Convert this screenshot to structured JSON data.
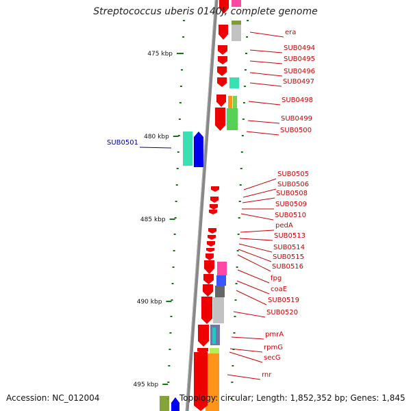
{
  "header": {
    "title": "Streptococcus uberis 0140J, complete genome"
  },
  "footer": {
    "accession": "Accession: NC_012004",
    "summary": "Topology: circular; Length: 1,852,352 bp; Genes: 1,845"
  },
  "scale": {
    "ticks": [
      {
        "label": "475 kbp",
        "kbp": 475
      },
      {
        "label": "480 kbp",
        "kbp": 480
      },
      {
        "label": "485 kbp",
        "kbp": 485
      },
      {
        "label": "490 kbp",
        "kbp": 490
      },
      {
        "label": "495 kbp",
        "kbp": 495
      }
    ]
  },
  "colors": {
    "forward_gene": "#ee0000",
    "reverse_gene": "#0000ee",
    "label_forward": "#cc0000",
    "label_reverse": "#000099",
    "backbone": "#888888",
    "ticks": "#117711"
  },
  "genes": [
    {
      "name": "era",
      "strand": "forward"
    },
    {
      "name": "SUB0494",
      "strand": "forward"
    },
    {
      "name": "SUB0495",
      "strand": "forward"
    },
    {
      "name": "SUB0496",
      "strand": "forward"
    },
    {
      "name": "SUB0497",
      "strand": "forward"
    },
    {
      "name": "SUB0498",
      "strand": "forward"
    },
    {
      "name": "SUB0499",
      "strand": "forward"
    },
    {
      "name": "SUB0500",
      "strand": "forward"
    },
    {
      "name": "SUB0501",
      "strand": "reverse"
    },
    {
      "name": "SUB0505",
      "strand": "forward"
    },
    {
      "name": "SUB0506",
      "strand": "forward"
    },
    {
      "name": "SUB0508",
      "strand": "forward"
    },
    {
      "name": "SUB0509",
      "strand": "forward"
    },
    {
      "name": "SUB0510",
      "strand": "forward"
    },
    {
      "name": "pedA",
      "strand": "forward"
    },
    {
      "name": "SUB0513",
      "strand": "forward"
    },
    {
      "name": "SUB0514",
      "strand": "forward"
    },
    {
      "name": "SUB0515",
      "strand": "forward"
    },
    {
      "name": "SUB0516",
      "strand": "forward"
    },
    {
      "name": "fpg",
      "strand": "forward"
    },
    {
      "name": "coaE",
      "strand": "forward"
    },
    {
      "name": "SUB0519",
      "strand": "forward"
    },
    {
      "name": "SUB0520",
      "strand": "forward"
    },
    {
      "name": "pmrA",
      "strand": "forward"
    },
    {
      "name": "rpmG",
      "strand": "forward"
    },
    {
      "name": "secG",
      "strand": "forward"
    },
    {
      "name": "rnr",
      "strand": "forward"
    }
  ]
}
